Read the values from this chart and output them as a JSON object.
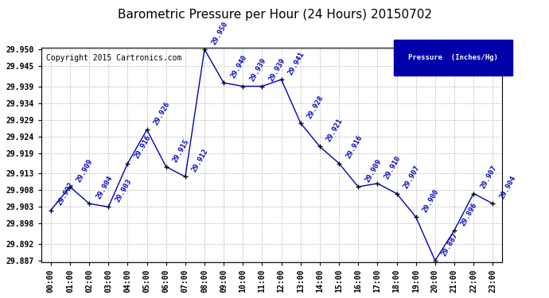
{
  "title": "Barometric Pressure per Hour (24 Hours) 20150702",
  "copyright_text": "Copyright 2015 Cartronics.com",
  "legend_text": "Pressure  (Inches/Hg)",
  "hours": [
    0,
    1,
    2,
    3,
    4,
    5,
    6,
    7,
    8,
    9,
    10,
    11,
    12,
    13,
    14,
    15,
    16,
    17,
    18,
    19,
    20,
    21,
    22,
    23
  ],
  "hour_labels": [
    "00:00",
    "01:00",
    "02:00",
    "03:00",
    "04:00",
    "05:00",
    "06:00",
    "07:00",
    "08:00",
    "09:00",
    "10:00",
    "11:00",
    "12:00",
    "13:00",
    "14:00",
    "15:00",
    "16:00",
    "17:00",
    "18:00",
    "19:00",
    "20:00",
    "21:00",
    "22:00",
    "23:00"
  ],
  "values": [
    29.902,
    29.909,
    29.904,
    29.903,
    29.916,
    29.926,
    29.915,
    29.912,
    29.95,
    29.94,
    29.939,
    29.939,
    29.941,
    29.928,
    29.921,
    29.916,
    29.909,
    29.91,
    29.907,
    29.9,
    29.887,
    29.896,
    29.907,
    29.904
  ],
  "ylim_min": 29.887,
  "ylim_max": 29.95,
  "yticks": [
    29.95,
    29.945,
    29.939,
    29.934,
    29.929,
    29.924,
    29.919,
    29.913,
    29.908,
    29.903,
    29.898,
    29.892,
    29.887
  ],
  "ytick_labels": [
    "29.950",
    "29.945",
    "29.939",
    "29.934",
    "29.929",
    "29.924",
    "29.919",
    "29.913",
    "29.908",
    "29.903",
    "29.898",
    "29.892",
    "29.887"
  ],
  "line_color": "#0000bb",
  "marker_color": "#000000",
  "bg_color": "#ffffff",
  "plot_bg_color": "#ffffff",
  "grid_color": "#bbbbbb",
  "title_color": "#000000",
  "title_fontsize": 11,
  "label_fontsize": 7,
  "annotation_fontsize": 6.5,
  "copyright_fontsize": 7,
  "legend_bg_color": "#0000aa",
  "legend_text_color": "#ffffff"
}
